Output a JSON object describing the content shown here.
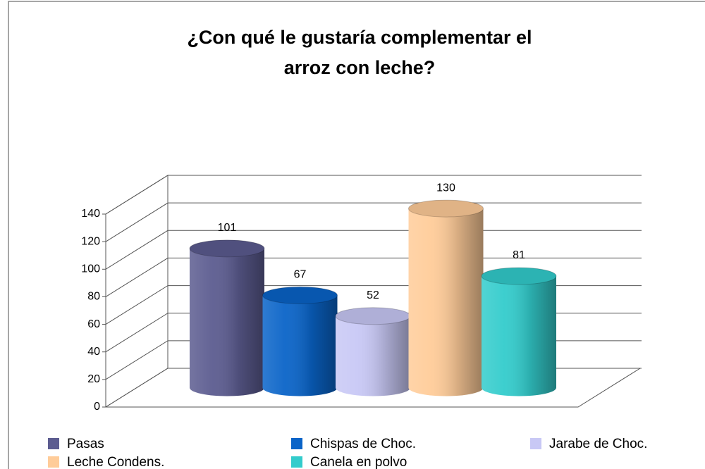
{
  "chart_data": {
    "type": "bar3d-cylinder",
    "title": [
      "¿Con qué le gustaría complementar el",
      "arroz con leche?"
    ],
    "series": [
      {
        "name": "Pasas",
        "color": "#5c5c90",
        "values": [
          101
        ]
      },
      {
        "name": "Chispas de Choc.",
        "color": "#0a64c8",
        "values": [
          67
        ]
      },
      {
        "name": "Jarabe de Choc.",
        "color": "#c8c8f5",
        "values": [
          52
        ]
      },
      {
        "name": "Leche Condens.",
        "color": "#ffcc99",
        "values": [
          130
        ]
      },
      {
        "name": "Canela en polvo",
        "color": "#33cccc",
        "values": [
          81
        ]
      }
    ],
    "ylim": [
      0,
      140
    ],
    "yticks": [
      0,
      20,
      40,
      60,
      80,
      100,
      120,
      140
    ],
    "grid": true,
    "legend": "bottom"
  }
}
